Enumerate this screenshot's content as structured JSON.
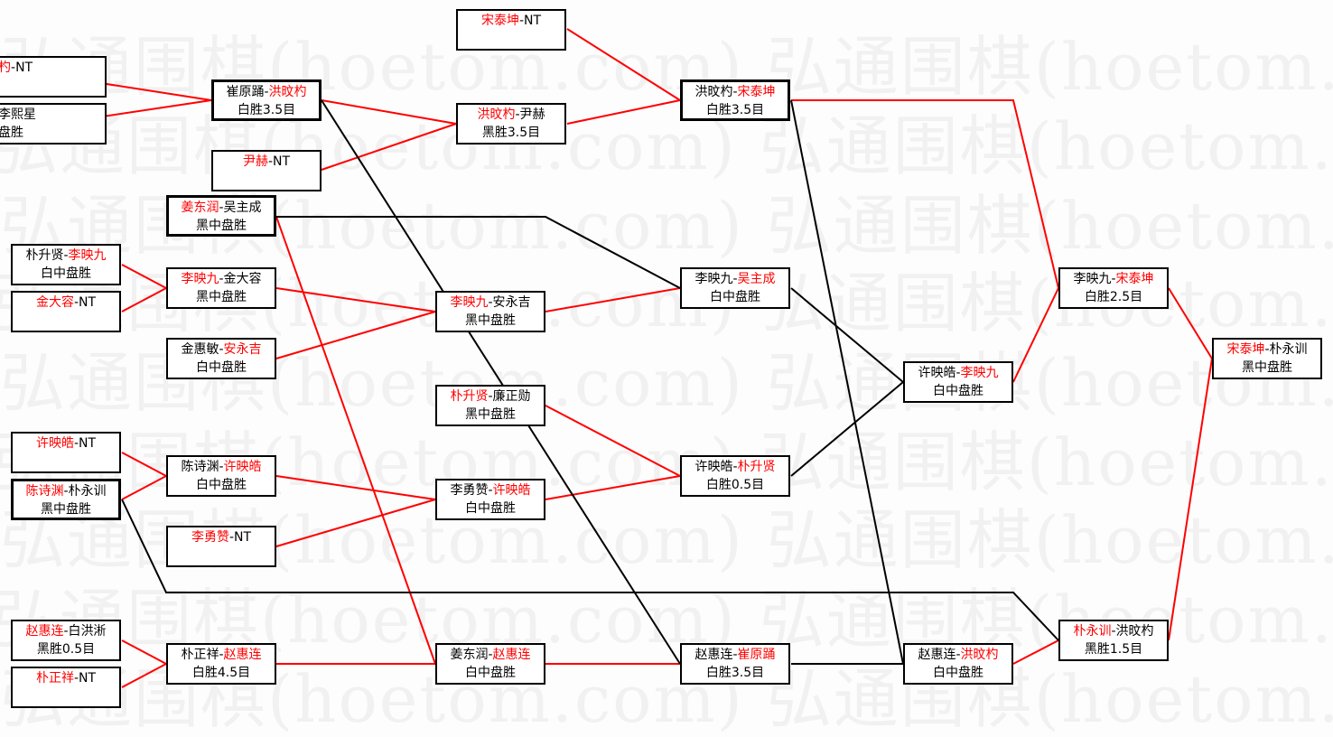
{
  "watermark": "弘通围棋(hoetom.com) 弘通围棋(hoetom.com)",
  "colors": {
    "winner": "#ff0000",
    "loser_line": "#000000",
    "winner_line": "#ff0000"
  },
  "matches": [
    {
      "p1": "杓",
      "p2": "NT",
      "winner": 1,
      "result": ""
    },
    {
      "p1": "",
      "p2": "李熙星",
      "winner": 0,
      "result": "盘胜"
    },
    {
      "p1": "朴升贤",
      "p2": "李映九",
      "winner": 2,
      "result": "白中盘胜"
    },
    {
      "p1": "金大容",
      "p2": "NT",
      "winner": 1,
      "result": ""
    },
    {
      "p1": "许映皓",
      "p2": "NT",
      "winner": 1,
      "result": ""
    },
    {
      "p1": "陈诗渊",
      "p2": "朴永训",
      "winner": 1,
      "result": "黑中盘胜"
    },
    {
      "p1": "赵惠连",
      "p2": "白洪淅",
      "winner": 1,
      "result": "黑胜0.5目"
    },
    {
      "p1": "朴正祥",
      "p2": "NT",
      "winner": 1,
      "result": ""
    },
    {
      "p1": "崔原踊",
      "p2": "洪旼杓",
      "winner": 2,
      "result": "白胜3.5目"
    },
    {
      "p1": "尹赫",
      "p2": "NT",
      "winner": 1,
      "result": ""
    },
    {
      "p1": "姜东润",
      "p2": "吴主成",
      "winner": 1,
      "result": "黑中盘胜"
    },
    {
      "p1": "李映九",
      "p2": "金大容",
      "winner": 1,
      "result": "黑中盘胜"
    },
    {
      "p1": "金惠敏",
      "p2": "安永吉",
      "winner": 2,
      "result": "白中盘胜"
    },
    {
      "p1": "陈诗渊",
      "p2": "许映皓",
      "winner": 2,
      "result": "白中盘胜"
    },
    {
      "p1": "李勇赞",
      "p2": "NT",
      "winner": 1,
      "result": ""
    },
    {
      "p1": "朴正祥",
      "p2": "赵惠连",
      "winner": 2,
      "result": "白胜4.5目"
    },
    {
      "p1": "宋泰坤",
      "p2": "NT",
      "winner": 1,
      "result": ""
    },
    {
      "p1": "洪旼杓",
      "p2": "尹赫",
      "winner": 1,
      "result": "黑胜3.5目"
    },
    {
      "p1": "李映九",
      "p2": "安永吉",
      "winner": 1,
      "result": "黑中盘胜"
    },
    {
      "p1": "朴升贤",
      "p2": "廉正勋",
      "winner": 1,
      "result": "黑中盘胜"
    },
    {
      "p1": "李勇赞",
      "p2": "许映皓",
      "winner": 2,
      "result": "白中盘胜"
    },
    {
      "p1": "姜东润",
      "p2": "赵惠连",
      "winner": 2,
      "result": "白中盘胜"
    },
    {
      "p1": "洪旼杓",
      "p2": "宋泰坤",
      "winner": 2,
      "result": "白胜3.5目"
    },
    {
      "p1": "李映九",
      "p2": "吴主成",
      "winner": 2,
      "result": "白中盘胜"
    },
    {
      "p1": "许映皓",
      "p2": "朴升贤",
      "winner": 2,
      "result": "白胜0.5目"
    },
    {
      "p1": "赵惠连",
      "p2": "崔原踊",
      "winner": 2,
      "result": "白胜3.5目"
    },
    {
      "p1": "许映皓",
      "p2": "李映九",
      "winner": 2,
      "result": "白中盘胜"
    },
    {
      "p1": "赵惠连",
      "p2": "洪旼杓",
      "winner": 2,
      "result": "白中盘胜"
    },
    {
      "p1": "李映九",
      "p2": "宋泰坤",
      "winner": 2,
      "result": "白胜2.5目"
    },
    {
      "p1": "朴永训",
      "p2": "洪旼杓",
      "winner": 1,
      "result": "黑胜1.5目"
    },
    {
      "p1": "宋泰坤",
      "p2": "朴永训",
      "winner": 1,
      "result": "黑中盘胜"
    }
  ]
}
